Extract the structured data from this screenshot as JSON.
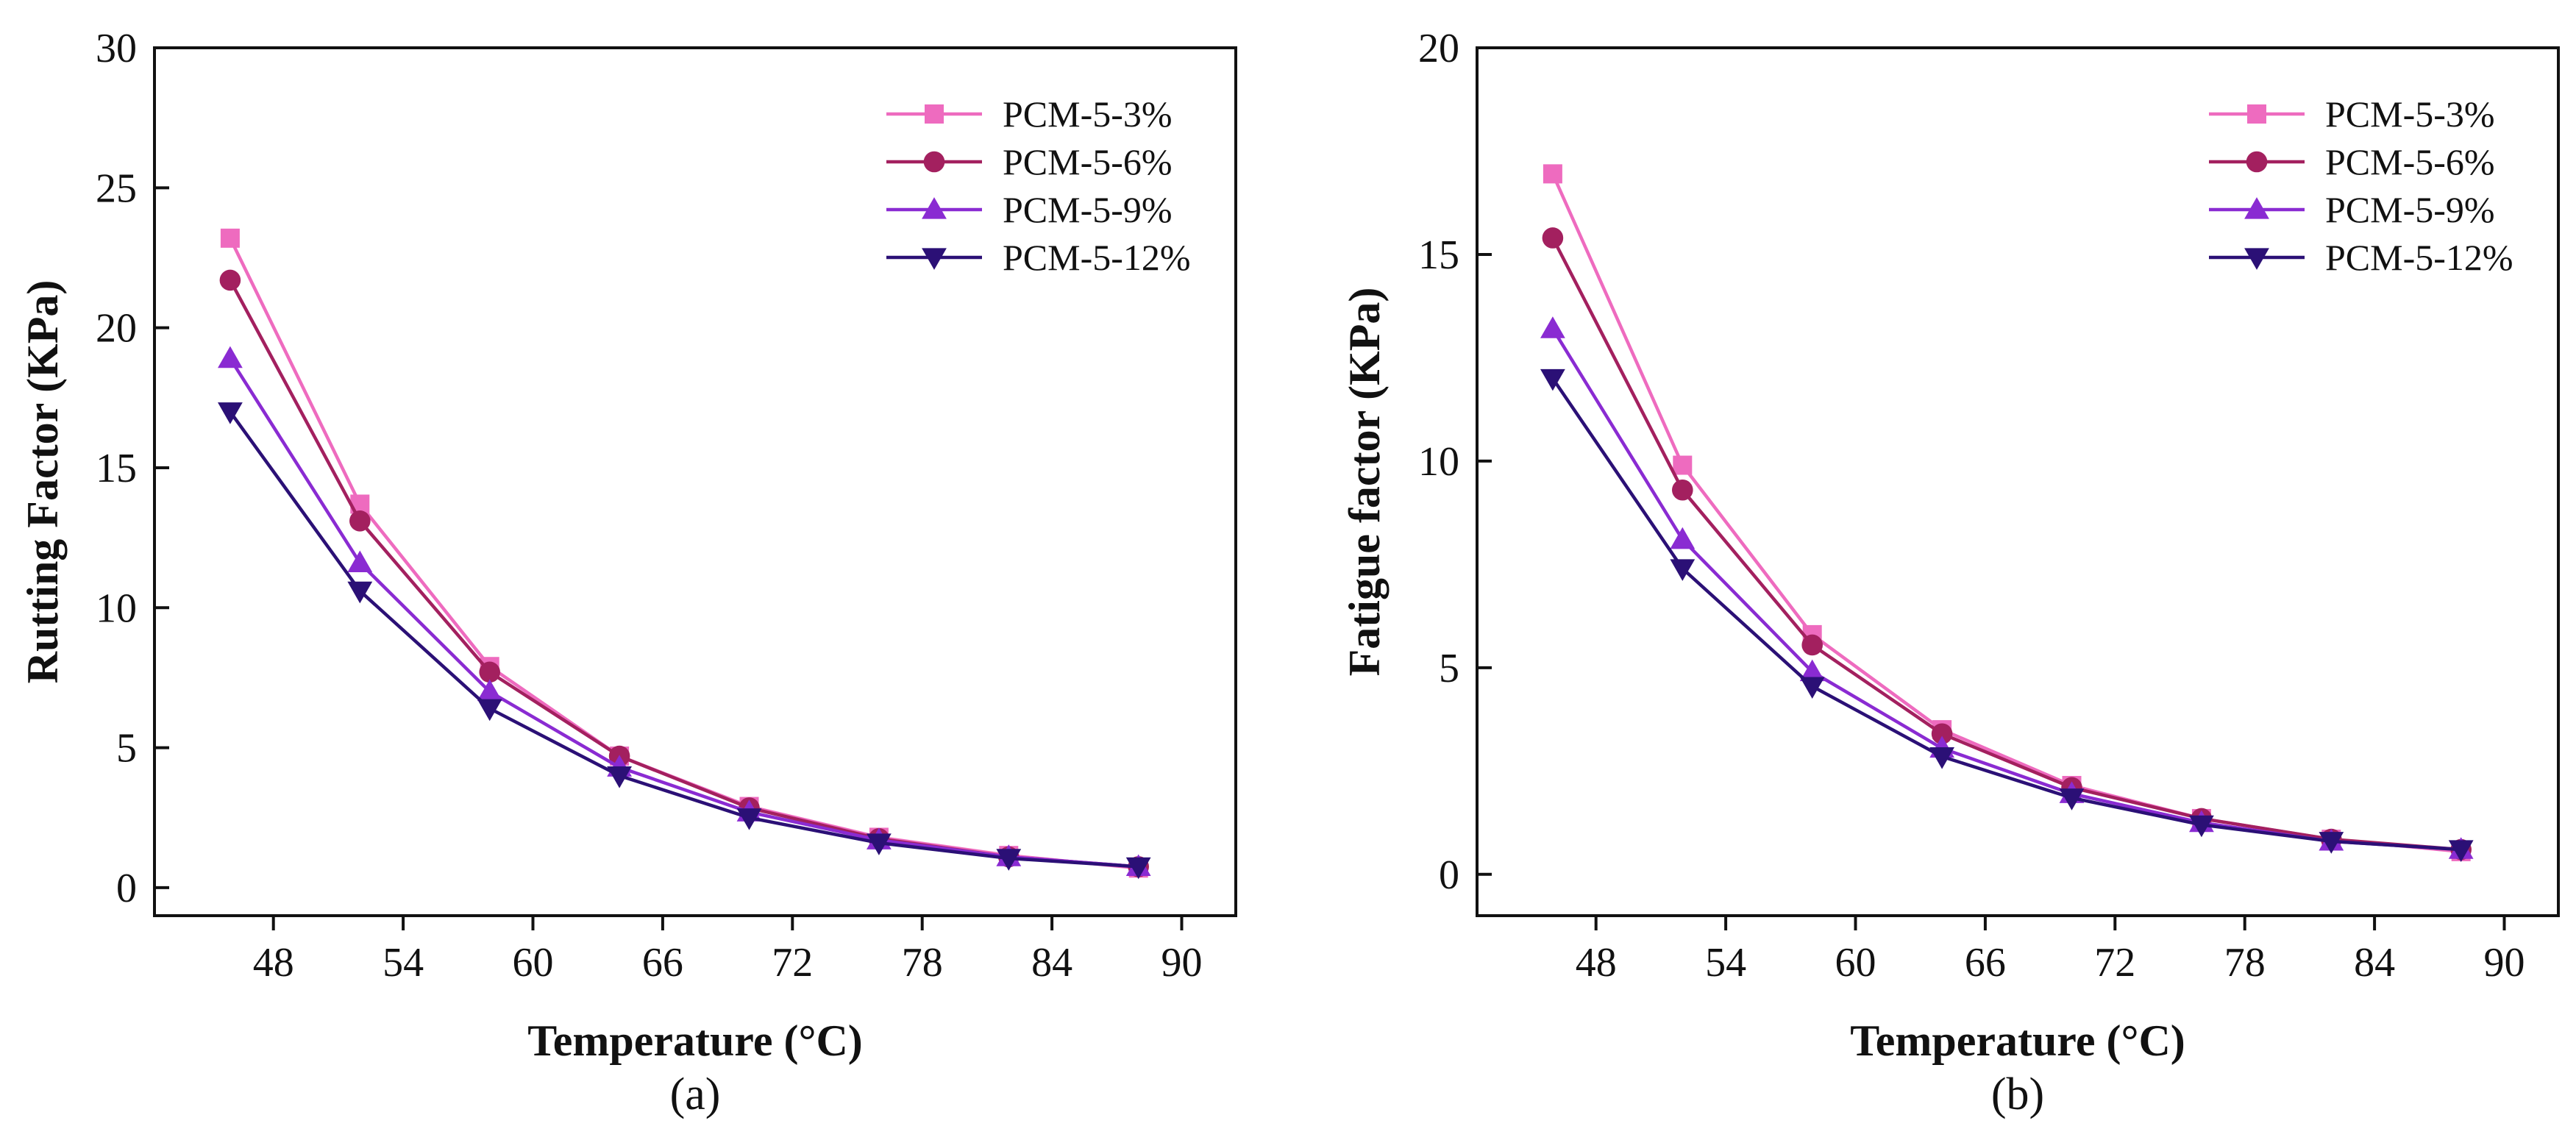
{
  "figure": {
    "domain": "Chart"
  },
  "chart_data": [
    {
      "type": "line",
      "panel_label": "(a)",
      "title": "",
      "xlabel": "Temperature (°C)",
      "ylabel": "Rutting Factor (KPa)",
      "xlim": [
        42.5,
        92.5
      ],
      "ylim": [
        -1,
        30
      ],
      "xticks": [
        48,
        54,
        60,
        66,
        72,
        78,
        84,
        90
      ],
      "yticks": [
        0,
        5,
        10,
        15,
        20,
        25,
        30
      ],
      "grid": false,
      "legend_position": "top-right",
      "x": [
        46,
        52,
        58,
        64,
        70,
        76,
        82,
        88
      ],
      "series": [
        {
          "name": "PCM-5-3%",
          "marker": "square",
          "color": "#ee6bbf",
          "values": [
            23.2,
            13.7,
            7.9,
            4.7,
            2.9,
            1.8,
            1.15,
            0.7
          ]
        },
        {
          "name": "PCM-5-6%",
          "marker": "circle",
          "color": "#a3205f",
          "values": [
            21.7,
            13.1,
            7.7,
            4.7,
            2.85,
            1.75,
            1.1,
            0.75
          ]
        },
        {
          "name": "PCM-5-9%",
          "marker": "triangle-up",
          "color": "#8a2bd2",
          "values": [
            18.9,
            11.6,
            7.0,
            4.3,
            2.7,
            1.7,
            1.1,
            0.75
          ]
        },
        {
          "name": "PCM-5-12%",
          "marker": "triangle-down",
          "color": "#2b1076",
          "values": [
            17.0,
            10.6,
            6.4,
            4.0,
            2.5,
            1.6,
            1.05,
            0.75
          ]
        }
      ]
    },
    {
      "type": "line",
      "panel_label": "(b)",
      "title": "",
      "xlabel": "Temperature (°C)",
      "ylabel": "Fatigue factor (KPa)",
      "xlim": [
        42.5,
        92.5
      ],
      "ylim": [
        -1,
        20
      ],
      "xticks": [
        48,
        54,
        60,
        66,
        72,
        78,
        84,
        90
      ],
      "yticks": [
        0,
        5,
        10,
        15,
        20
      ],
      "grid": false,
      "legend_position": "top-right",
      "x": [
        46,
        52,
        58,
        64,
        70,
        76,
        82,
        88
      ],
      "series": [
        {
          "name": "PCM-5-3%",
          "marker": "square",
          "color": "#ee6bbf",
          "values": [
            16.95,
            9.9,
            5.8,
            3.5,
            2.15,
            1.35,
            0.85,
            0.55
          ]
        },
        {
          "name": "PCM-5-6%",
          "marker": "circle",
          "color": "#a3205f",
          "values": [
            15.4,
            9.3,
            5.55,
            3.4,
            2.1,
            1.35,
            0.85,
            0.6
          ]
        },
        {
          "name": "PCM-5-9%",
          "marker": "triangle-up",
          "color": "#8a2bd2",
          "values": [
            13.2,
            8.1,
            4.9,
            3.05,
            1.95,
            1.25,
            0.8,
            0.6
          ]
        },
        {
          "name": "PCM-5-12%",
          "marker": "triangle-down",
          "color": "#2b1076",
          "values": [
            12.0,
            7.4,
            4.55,
            2.85,
            1.85,
            1.2,
            0.8,
            0.6
          ]
        }
      ]
    }
  ]
}
